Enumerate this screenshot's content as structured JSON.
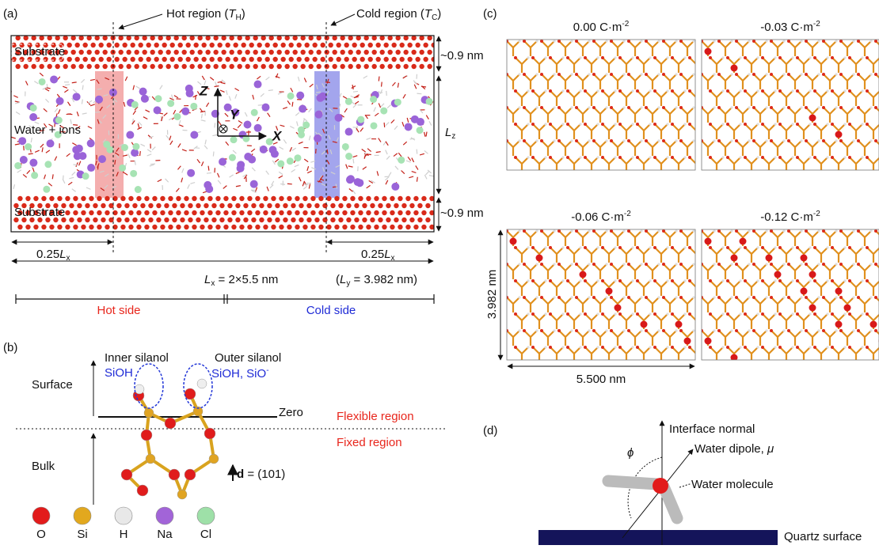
{
  "panel_a": {
    "label": "(a)",
    "hot_region": [
      "Hot region (",
      "T",
      "H",
      ")"
    ],
    "cold_region": [
      "Cold region (",
      "T",
      "C",
      ")"
    ],
    "substrate_top": "Substrate",
    "substrate_bottom": "Substrate",
    "water": "Water + ions",
    "thickness_top": "~0.9 nm",
    "thickness_bottom": "~0.9 nm",
    "lz": [
      "L",
      "z"
    ],
    "axis_z": "Z",
    "axis_y": "Y",
    "axis_x": "X",
    "hot_width": [
      "0.25",
      "L",
      "x"
    ],
    "cold_width": [
      "0.25",
      "L",
      "x"
    ],
    "lx": [
      "L",
      "x",
      " = 2×5.5 nm"
    ],
    "ly": [
      "(",
      "L",
      "y",
      " = 3.982 nm)"
    ],
    "hot_side": "Hot side",
    "cold_side": "Cold side"
  },
  "panel_b": {
    "label": "(b)",
    "inner_silanol": "Inner silanol",
    "inner_species": "SiOH",
    "outer_silanol": "Outer silanol",
    "outer_species": [
      "SiOH, SiO",
      "-"
    ],
    "surface": "Surface",
    "zero": "Zero",
    "flexible": "Flexible region",
    "fixed": "Fixed region",
    "bulk": "Bulk",
    "direction": [
      "d",
      " = (101)"
    ],
    "legend": [
      "O",
      "Si",
      "H",
      "Na",
      "Cl"
    ]
  },
  "panel_c": {
    "label": "(c)",
    "densities": [
      [
        "0.00 C·m",
        "-2"
      ],
      [
        "-0.03 C·m",
        "-2"
      ],
      [
        "-0.06 C·m",
        "-2"
      ],
      [
        "-0.12 C·m",
        "-2"
      ]
    ],
    "height": "3.982 nm",
    "width": "5.500 nm"
  },
  "panel_d": {
    "label": "(d)",
    "normal": "Interface normal",
    "dipole": [
      "Water dipole, ",
      "μ"
    ],
    "molecule": "Water molecule",
    "surface": "Quartz surface",
    "angle": "ϕ"
  }
}
